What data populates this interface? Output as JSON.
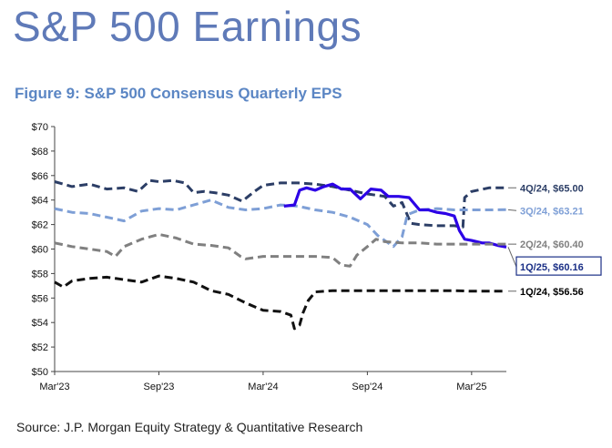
{
  "header": {
    "title": "S&P 500 Earnings",
    "figure_title": "Figure 9: S&P 500 Consensus Quarterly EPS"
  },
  "footer": {
    "source": "Source: J.P. Morgan Equity Strategy & Quantitative Research"
  },
  "chart_data": {
    "type": "line",
    "title": "Figure 9: S&P 500 Consensus Quarterly EPS",
    "xlabel": "",
    "ylabel": "",
    "x_ticks": [
      "Mar'23",
      "Sep'23",
      "Mar'24",
      "Sep'24",
      "Mar'25"
    ],
    "x_range_months": [
      0,
      26
    ],
    "y_ticks": [
      "$70",
      "$68",
      "$66",
      "$64",
      "$62",
      "$60",
      "$58",
      "$56",
      "$54",
      "$52",
      "$50"
    ],
    "ylim": [
      50,
      70
    ],
    "grid": false,
    "x_unit": "months since Mar'23",
    "series": [
      {
        "name": "4Q/24",
        "end_label": "4Q/24,  $65.00",
        "color": "#2c3e66",
        "dash": "dashed",
        "highlight": false,
        "points": [
          [
            0,
            65.5
          ],
          [
            1,
            65.1
          ],
          [
            2,
            65.3
          ],
          [
            3,
            64.9
          ],
          [
            4,
            65.0
          ],
          [
            4.8,
            64.7
          ],
          [
            5.5,
            65.6
          ],
          [
            6,
            65.5
          ],
          [
            6.8,
            65.6
          ],
          [
            7.5,
            65.4
          ],
          [
            8,
            64.6
          ],
          [
            8.6,
            64.7
          ],
          [
            9.2,
            64.6
          ],
          [
            10,
            64.4
          ],
          [
            10.8,
            63.9
          ],
          [
            11.5,
            64.7
          ],
          [
            12,
            65.2
          ],
          [
            13,
            65.4
          ],
          [
            14,
            65.4
          ],
          [
            15,
            65.3
          ],
          [
            16,
            65.1
          ],
          [
            17,
            64.8
          ],
          [
            18,
            64.5
          ],
          [
            19,
            64.3
          ],
          [
            19.5,
            63.5
          ],
          [
            20,
            63.8
          ],
          [
            20.5,
            62.1
          ],
          [
            21,
            62.0
          ],
          [
            22,
            61.9
          ],
          [
            23,
            61.9
          ],
          [
            23.5,
            61.8
          ],
          [
            23.6,
            64.2
          ],
          [
            24,
            64.7
          ],
          [
            25,
            65.0
          ],
          [
            26,
            65.0
          ]
        ]
      },
      {
        "name": "3Q/24",
        "end_label": "3Q/24,  $63.21",
        "color": "#7e9fd6",
        "dash": "dashed",
        "highlight": false,
        "points": [
          [
            0,
            63.3
          ],
          [
            1,
            63.0
          ],
          [
            2,
            62.9
          ],
          [
            3,
            62.6
          ],
          [
            4,
            62.3
          ],
          [
            5,
            63.1
          ],
          [
            6,
            63.3
          ],
          [
            7,
            63.2
          ],
          [
            8,
            63.6
          ],
          [
            9,
            64.0
          ],
          [
            10,
            63.4
          ],
          [
            11,
            63.2
          ],
          [
            12,
            63.3
          ],
          [
            13,
            63.6
          ],
          [
            14,
            63.5
          ],
          [
            15,
            63.2
          ],
          [
            16,
            63.0
          ],
          [
            17,
            62.6
          ],
          [
            18,
            62.0
          ],
          [
            18.6,
            61.1
          ],
          [
            19.5,
            60.2
          ],
          [
            20,
            61.0
          ],
          [
            20.3,
            62.8
          ],
          [
            21,
            63.2
          ],
          [
            22,
            63.3
          ],
          [
            23,
            63.2
          ],
          [
            24,
            63.2
          ],
          [
            25,
            63.2
          ],
          [
            26,
            63.21
          ]
        ]
      },
      {
        "name": "1Q/25",
        "end_label": "1Q/25,  $60.16",
        "color": "#2c00e6",
        "dash": "solid",
        "highlight": true,
        "points": [
          [
            13.2,
            63.5
          ],
          [
            13.8,
            63.6
          ],
          [
            14.1,
            64.8
          ],
          [
            14.5,
            65.0
          ],
          [
            15,
            64.8
          ],
          [
            15.5,
            65.1
          ],
          [
            16,
            65.3
          ],
          [
            16.5,
            64.9
          ],
          [
            17,
            64.9
          ],
          [
            17.6,
            64.1
          ],
          [
            18.2,
            64.9
          ],
          [
            18.8,
            64.8
          ],
          [
            19.2,
            64.3
          ],
          [
            19.8,
            64.3
          ],
          [
            20.4,
            64.2
          ],
          [
            21,
            63.2
          ],
          [
            21.5,
            63.2
          ],
          [
            22,
            63.0
          ],
          [
            22.5,
            62.9
          ],
          [
            23,
            62.7
          ],
          [
            23.3,
            61.5
          ],
          [
            23.6,
            60.8
          ],
          [
            24,
            60.7
          ],
          [
            24.6,
            60.5
          ],
          [
            25,
            60.5
          ],
          [
            25.5,
            60.3
          ],
          [
            26,
            60.16
          ]
        ]
      },
      {
        "name": "2Q/24",
        "end_label": "2Q/24,  $60.40",
        "color": "#808080",
        "dash": "dashed",
        "highlight": false,
        "points": [
          [
            0,
            60.5
          ],
          [
            1,
            60.2
          ],
          [
            2,
            60.0
          ],
          [
            3,
            59.8
          ],
          [
            3.5,
            59.4
          ],
          [
            4,
            60.2
          ],
          [
            5,
            60.8
          ],
          [
            6,
            61.2
          ],
          [
            7,
            60.9
          ],
          [
            8,
            60.4
          ],
          [
            9,
            60.3
          ],
          [
            10,
            60.1
          ],
          [
            10.7,
            59.4
          ],
          [
            11,
            59.2
          ],
          [
            12,
            59.4
          ],
          [
            13,
            59.4
          ],
          [
            14,
            59.4
          ],
          [
            15,
            59.4
          ],
          [
            16,
            59.3
          ],
          [
            16.5,
            58.7
          ],
          [
            17,
            58.6
          ],
          [
            17.4,
            59.5
          ],
          [
            18,
            60.2
          ],
          [
            18.5,
            60.8
          ],
          [
            19,
            60.6
          ],
          [
            20,
            60.5
          ],
          [
            21,
            60.5
          ],
          [
            22,
            60.4
          ],
          [
            23,
            60.4
          ],
          [
            24,
            60.4
          ],
          [
            25,
            60.4
          ],
          [
            26,
            60.4
          ]
        ]
      },
      {
        "name": "1Q/24",
        "end_label": "1Q/24,  $56.56",
        "color": "#111111",
        "dash": "dashed",
        "highlight": false,
        "points": [
          [
            0,
            57.3
          ],
          [
            0.5,
            56.9
          ],
          [
            1,
            57.4
          ],
          [
            2,
            57.6
          ],
          [
            3,
            57.7
          ],
          [
            4,
            57.5
          ],
          [
            5,
            57.3
          ],
          [
            6,
            57.8
          ],
          [
            7,
            57.6
          ],
          [
            8,
            57.3
          ],
          [
            9,
            56.6
          ],
          [
            10,
            56.3
          ],
          [
            11,
            55.6
          ],
          [
            12,
            55.0
          ],
          [
            13,
            54.9
          ],
          [
            13.6,
            54.6
          ],
          [
            13.8,
            53.5
          ],
          [
            14.1,
            53.8
          ],
          [
            14.3,
            54.8
          ],
          [
            14.6,
            55.8
          ],
          [
            15,
            56.5
          ],
          [
            16,
            56.6
          ],
          [
            17,
            56.6
          ],
          [
            18,
            56.6
          ],
          [
            19,
            56.6
          ],
          [
            20,
            56.6
          ],
          [
            21,
            56.6
          ],
          [
            22,
            56.6
          ],
          [
            23,
            56.6
          ],
          [
            24,
            56.56
          ],
          [
            25,
            56.56
          ],
          [
            26,
            56.56
          ]
        ]
      }
    ]
  }
}
